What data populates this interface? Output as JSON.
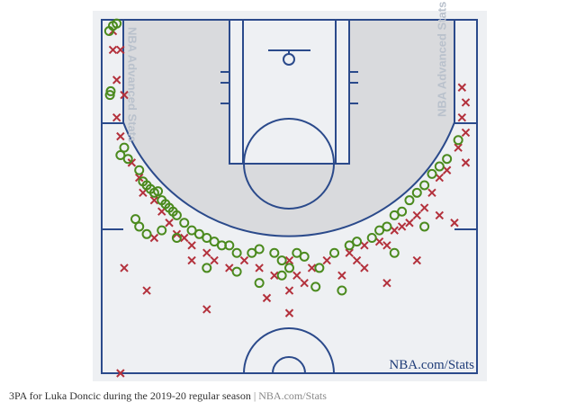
{
  "chart_data": {
    "type": "shot-chart",
    "watermark": "NBA Advanced Stats",
    "court_label": "NBA.com/Stats",
    "xlim": [
      -25,
      25
    ],
    "ylim": [
      0,
      47
    ],
    "series": [
      {
        "color": "#b3313c",
        "marker": "x",
        "x": [
          -23.5,
          -23.5,
          -22.5,
          -23,
          -22,
          -23,
          -22.5,
          23,
          23.5,
          23,
          23.5,
          22.5,
          23.5,
          22,
          -21,
          -20,
          -19.5,
          -18,
          -17,
          -16,
          -15,
          -14,
          -13,
          -18,
          -22,
          -19,
          -13,
          -11,
          -10,
          -8,
          -6,
          -4,
          -2,
          0,
          1,
          2,
          3,
          5,
          -3,
          0,
          -11,
          0,
          7,
          -22.5,
          8,
          9,
          10,
          12,
          13,
          14,
          15,
          16,
          17,
          18,
          19,
          20,
          21,
          17,
          13,
          10,
          20
        ],
        "y": [
          1.5,
          4,
          4,
          8,
          10,
          13,
          15.5,
          9,
          11,
          13,
          15,
          17,
          19,
          27,
          19,
          21,
          23,
          24,
          25.5,
          27,
          28.5,
          29,
          30,
          29,
          33,
          36,
          32,
          31,
          32,
          33,
          32,
          33,
          34,
          32,
          34,
          35,
          33,
          32,
          37,
          36,
          38.5,
          39,
          34,
          47,
          31,
          32,
          30,
          29.5,
          30,
          28,
          27.5,
          27,
          26,
          25,
          23,
          21,
          20,
          32,
          35,
          33,
          26
        ]
      },
      {
        "color": "#4b8a1e",
        "marker": "o",
        "x": [
          -23,
          -23.5,
          -24,
          -23.8,
          -23.9,
          -22,
          -22.5,
          -21.5,
          -20,
          -19.5,
          -19,
          -18.5,
          -18,
          -17.5,
          -17,
          -16.5,
          -16,
          -15.5,
          -15,
          -14,
          -13,
          -12,
          -20.5,
          -20,
          -19,
          -11,
          -10,
          -9,
          -17,
          -15,
          -8,
          -7,
          -5,
          -4,
          -2,
          -1,
          0,
          1,
          2,
          -1,
          -7,
          -11,
          -4,
          4,
          3.5,
          7,
          6,
          8,
          9,
          11,
          12,
          13,
          14,
          15,
          16,
          17,
          18,
          19,
          20,
          21,
          22.5,
          18,
          14
        ],
        "y": [
          0.5,
          0.8,
          1.5,
          9.5,
          10,
          17,
          18,
          18.5,
          20,
          21.5,
          22,
          22.5,
          23,
          22.8,
          24,
          24.5,
          25,
          25.5,
          26,
          27,
          28,
          28.5,
          26.5,
          27.5,
          28.5,
          29,
          29.5,
          30,
          28,
          29,
          30,
          31,
          31,
          30.5,
          31,
          32,
          33,
          31,
          31.5,
          34,
          33.5,
          33,
          35,
          33,
          35.5,
          36,
          31,
          30,
          29.5,
          29,
          28,
          27.5,
          26,
          25.5,
          24,
          23,
          22,
          20.5,
          19.5,
          18.5,
          16,
          27.5,
          31
        ]
      }
    ]
  },
  "caption": {
    "text": "3PA for Luka Doncic during the 2019-20 regular season",
    "separator": "|",
    "source": "NBA.com/Stats"
  }
}
